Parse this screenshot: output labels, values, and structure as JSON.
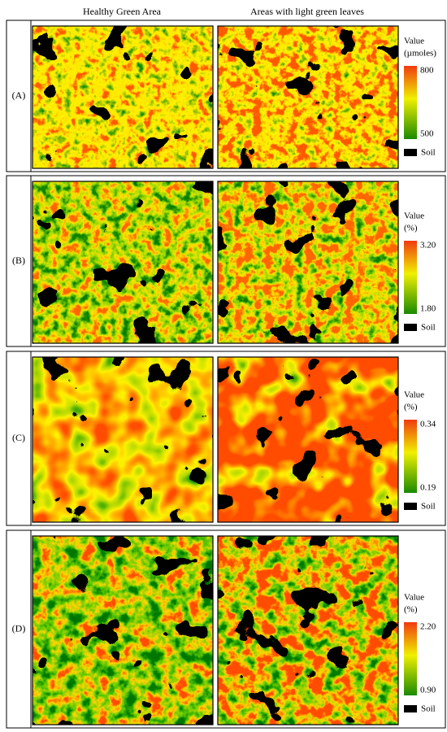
{
  "column_headers": [
    "Healthy Green Area",
    "Areas with light green leaves"
  ],
  "panels": [
    {
      "label": "(A)",
      "legend": {
        "title": "Value",
        "unit": "(µmoles)",
        "max": "800",
        "min": "500",
        "soil": "Soil"
      }
    },
    {
      "label": "(B)",
      "legend": {
        "title": "Value",
        "unit": "(%)",
        "max": "3.20",
        "min": "1.80",
        "soil": "Soil"
      }
    },
    {
      "label": "(C)",
      "legend": {
        "title": "Value",
        "unit": "(%)",
        "max": "0.34",
        "min": "0.19",
        "soil": "Soil"
      }
    },
    {
      "label": "(D)",
      "legend": {
        "title": "Value",
        "unit": "(%)",
        "max": "2.20",
        "min": "0.90",
        "soil": "Soil"
      }
    }
  ]
}
